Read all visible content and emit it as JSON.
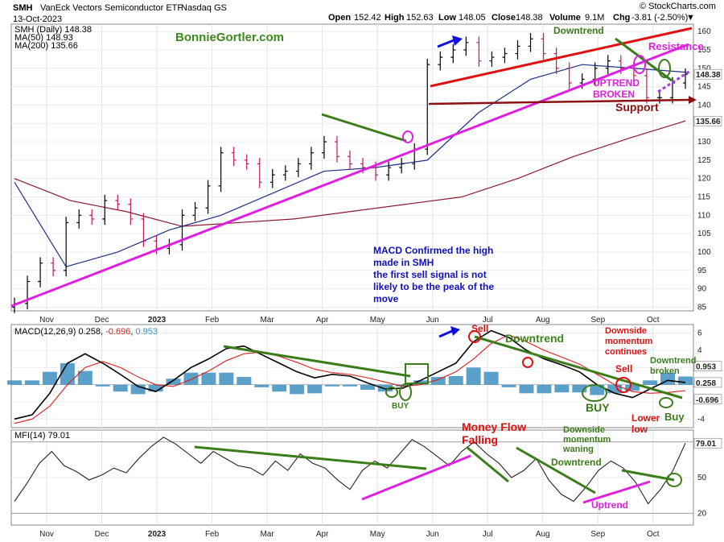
{
  "header": {
    "symbol": "SMH",
    "name": "VanEck Vectors Semiconductor ETF",
    "exchange": "Nasdaq GS",
    "date": "13-Oct-2023",
    "open_label": "Open",
    "open": "152.42",
    "high_label": "High",
    "high": "152.63",
    "low_label": "Low",
    "low": "148.05",
    "close_label": "Close",
    "close": "148.38",
    "volume_label": "Volume",
    "volume": "9.1M",
    "chg_label": "Chg",
    "chg": "-3.81 (-2.50%)",
    "chg_arrow": "▼",
    "watermark": "© StockCharts.com"
  },
  "legend": {
    "price": "SMH (Daily) 148.38",
    "ma50": "MA(50) 148.93",
    "ma200": "MA(200) 135.66",
    "macd": "MACD(12,26,9) 0.258, -0.696, 0.953",
    "macd_parts": [
      "MACD(12,26,9) 0.258, ",
      "-0.696",
      ", ",
      "0.953"
    ],
    "mfi": "MFI(14) 79.01"
  },
  "colors": {
    "price_up": "#000000",
    "price_down": "#c4185f",
    "ma50": "#1f2f8a",
    "ma200": "#8b1a2b",
    "macd_line": "#000000",
    "signal_line": "#e41a1c",
    "histogram": "#3d8fbf",
    "trendline_magenta": "#e020e0",
    "trendline_green": "#3a7d1a",
    "trendline_red": "#e01010",
    "support": "#8b1010",
    "annotation_blue": "#1010c0"
  },
  "chart_data": [
    {
      "type": "candlestick",
      "title": "SMH (Daily)",
      "ylim": [
        84,
        162
      ],
      "yticks": [
        85,
        90,
        95,
        100,
        105,
        110,
        115,
        120,
        125,
        130,
        135,
        140,
        145,
        150,
        155,
        160
      ],
      "x_labels": [
        "Nov",
        "Dec",
        "2023",
        "Feb",
        "Mar",
        "Apr",
        "May",
        "Jun",
        "Jul",
        "Aug",
        "Sep",
        "Oct"
      ],
      "last_value": 148.38,
      "series": [
        {
          "name": "SMH close",
          "x": [
            "2022-10-13",
            "2022-10-20",
            "2022-10-27",
            "2022-11-03",
            "2022-11-10",
            "2022-11-17",
            "2022-11-24",
            "2022-12-01",
            "2022-12-08",
            "2022-12-15",
            "2022-12-22",
            "2022-12-29",
            "2023-01-05",
            "2023-01-12",
            "2023-01-19",
            "2023-01-26",
            "2023-02-02",
            "2023-02-09",
            "2023-02-16",
            "2023-02-23",
            "2023-03-02",
            "2023-03-09",
            "2023-03-16",
            "2023-03-23",
            "2023-03-30",
            "2023-04-06",
            "2023-04-13",
            "2023-04-20",
            "2023-04-27",
            "2023-05-04",
            "2023-05-11",
            "2023-05-18",
            "2023-05-25",
            "2023-06-01",
            "2023-06-08",
            "2023-06-15",
            "2023-06-22",
            "2023-06-29",
            "2023-07-06",
            "2023-07-13",
            "2023-07-20",
            "2023-07-27",
            "2023-08-03",
            "2023-08-10",
            "2023-08-17",
            "2023-08-24",
            "2023-08-31",
            "2023-09-07",
            "2023-09-14",
            "2023-09-21",
            "2023-09-28",
            "2023-10-05",
            "2023-10-13"
          ],
          "values": [
            86,
            92,
            97,
            95,
            108,
            110,
            109,
            114,
            113,
            109,
            103,
            101,
            102,
            110,
            112,
            118,
            127,
            125,
            124,
            119,
            121,
            122,
            124,
            127,
            130,
            126,
            124,
            123,
            121,
            123,
            124,
            128,
            151,
            153,
            155,
            157,
            152,
            153,
            154,
            156,
            158,
            154,
            150,
            146,
            147,
            150,
            152,
            150,
            148,
            142,
            142,
            146,
            148.38
          ]
        },
        {
          "name": "MA(50)",
          "x": [
            "2022-10-13",
            "2022-11-03",
            "2022-12-01",
            "2023-01-05",
            "2023-02-02",
            "2023-03-02",
            "2023-04-06",
            "2023-05-04",
            "2023-05-25",
            "2023-06-15",
            "2023-07-13",
            "2023-08-10",
            "2023-09-07",
            "2023-10-13"
          ],
          "values": [
            119,
            96,
            100,
            106,
            110,
            116,
            122,
            123,
            125,
            138,
            147,
            151,
            150,
            148.93
          ]
        },
        {
          "name": "MA(200)",
          "x": [
            "2022-10-13",
            "2022-11-03",
            "2022-12-01",
            "2023-01-05",
            "2023-02-02",
            "2023-03-02",
            "2023-04-06",
            "2023-05-04",
            "2023-06-01",
            "2023-07-06",
            "2023-08-03",
            "2023-09-07",
            "2023-10-13"
          ],
          "values": [
            120,
            114,
            111,
            107,
            108,
            109,
            111,
            113,
            115,
            120,
            126,
            131,
            135.66
          ]
        }
      ]
    },
    {
      "type": "bar",
      "title": "MACD(12,26,9)",
      "ylim": [
        -5,
        7
      ],
      "yticks": [
        -4,
        -2,
        0,
        2,
        4,
        6
      ],
      "last_values": {
        "macd": 0.258,
        "signal": -0.696,
        "histogram": 0.953
      },
      "series": [
        {
          "name": "MACD",
          "values": [
            -4,
            -3.5,
            -1,
            2.5,
            3.6,
            2.5,
            1.2,
            -0.2,
            -0.8,
            0.5,
            2,
            3,
            4.2,
            4.5,
            3.5,
            2.5,
            1.5,
            0.8,
            1.2,
            1,
            0.2,
            -0.5,
            -0.4,
            0.5,
            1.5,
            2.5,
            5,
            6.3,
            5.5,
            4,
            3,
            2.3,
            1.5,
            0,
            -1,
            -1.5,
            -0.5,
            0.5,
            0.258
          ]
        },
        {
          "name": "Signal",
          "values": [
            -4.5,
            -4,
            -2.5,
            0,
            2,
            2.7,
            2,
            0.9,
            0,
            -0.2,
            0.6,
            1.6,
            2.8,
            3.6,
            3.8,
            3.3,
            2.6,
            1.8,
            1.4,
            1.2,
            0.8,
            0.3,
            -0.2,
            0,
            0.6,
            1.5,
            3,
            4.8,
            5.8,
            5,
            4,
            3.2,
            2.4,
            1.2,
            0,
            -0.8,
            -1,
            -0.9,
            -0.696
          ]
        },
        {
          "name": "Histogram",
          "values": [
            0.5,
            0.5,
            1.5,
            2.5,
            1.6,
            -0.2,
            -0.8,
            -1.1,
            -0.8,
            0.7,
            1.4,
            1.4,
            1.4,
            0.9,
            -0.3,
            -0.8,
            -1.1,
            -1,
            -0.2,
            -0.2,
            -0.6,
            -0.8,
            -0.2,
            0.5,
            0.9,
            1,
            2,
            1.5,
            -0.3,
            -1,
            -1,
            -0.9,
            -0.9,
            -1.2,
            -1,
            -0.7,
            0.5,
            1.4,
            0.953
          ]
        }
      ]
    },
    {
      "type": "line",
      "title": "MFI(14)",
      "ylim": [
        10,
        90
      ],
      "yticks": [
        20,
        50,
        80
      ],
      "last_value": 79.01,
      "x_labels": [
        "Nov",
        "Dec",
        "2023",
        "Feb",
        "Mar",
        "Apr",
        "May",
        "Jun",
        "Jul",
        "Aug",
        "Sep",
        "Oct"
      ],
      "series": [
        {
          "name": "MFI",
          "values": [
            30,
            45,
            62,
            72,
            60,
            55,
            48,
            52,
            58,
            54,
            66,
            76,
            84,
            78,
            70,
            62,
            72,
            66,
            60,
            58,
            52,
            64,
            56,
            70,
            62,
            58,
            48,
            40,
            56,
            64,
            58,
            70,
            82,
            76,
            68,
            60,
            72,
            80,
            70,
            62,
            50,
            56,
            66,
            48,
            36,
            30,
            42,
            56,
            64,
            58,
            46,
            28,
            40,
            56,
            79
          ]
        }
      ]
    }
  ],
  "annotations": {
    "website": "BonnieGortler.com",
    "macd_note": [
      "MACD Confirmed the high",
      "made in SMH",
      "the first sell signal is not",
      "likely to be the peak of the",
      "move"
    ],
    "price_downtrend": "Downtrend",
    "resistance": "Resistance",
    "uptrend_broken": [
      "UPTREND",
      "BROKEN"
    ],
    "support": "Support",
    "macd_sell1": "Sell",
    "macd_downtrend": "Downtrend",
    "downside_momentum": [
      "Downside",
      "momentum",
      "continues"
    ],
    "macd_sell2": "Sell",
    "downtrend_broken": [
      "Downtrend",
      "broken"
    ],
    "buy_small": "BUY",
    "buy_big": "BUY",
    "lower_low": [
      "Lower",
      "low"
    ],
    "buy_late": "Buy",
    "money_flow": [
      "Money Flow",
      "Falling"
    ],
    "momentum_waning": [
      "Downside",
      "momentum",
      "waning"
    ],
    "mfi_downtrend": "Downtrend",
    "mfi_uptrend": "Uptrend"
  }
}
